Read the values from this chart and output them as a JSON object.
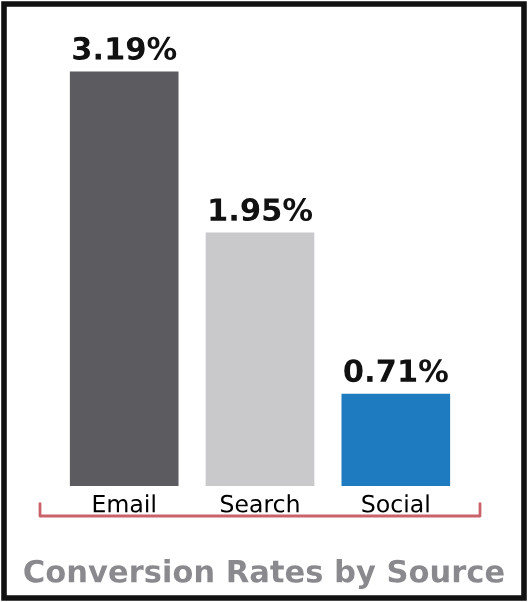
{
  "chart_data": {
    "type": "bar",
    "title": "Conversion Rates by Source",
    "categories": [
      "Email",
      "Search",
      "Social"
    ],
    "values": [
      3.19,
      1.95,
      0.71
    ],
    "colors": [
      "#5b5b60",
      "#c9c9cb",
      "#1f7bbf"
    ],
    "value_labels": [
      "3.19%",
      "1.95%",
      "0.71%"
    ],
    "grid": false,
    "legend": false
  }
}
